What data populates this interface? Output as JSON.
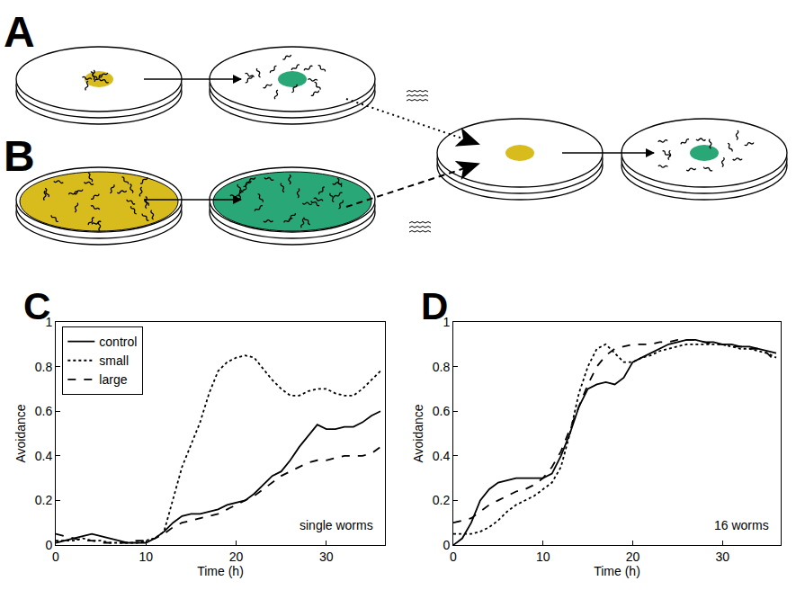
{
  "diagram": {
    "labels": [
      "A",
      "B"
    ]
  },
  "chart_data": [
    {
      "type": "line",
      "title": "C",
      "x_label": "Time (h)",
      "y_label": "Avoidance",
      "annotations": [
        "single worms"
      ],
      "x": [
        0,
        1,
        2,
        3,
        4,
        5,
        6,
        7,
        8,
        9,
        10,
        11,
        12,
        13,
        14,
        15,
        16,
        17,
        18,
        19,
        20,
        21,
        22,
        23,
        24,
        25,
        26,
        27,
        28,
        29,
        30,
        31,
        32,
        33,
        34,
        35,
        36
      ],
      "series": [
        {
          "name": "control",
          "color": "#000000",
          "line_style": "solid",
          "values": [
            0.01,
            0.02,
            0.03,
            0.04,
            0.05,
            0.04,
            0.03,
            0.02,
            0.01,
            0.01,
            0.01,
            0.03,
            0.06,
            0.1,
            0.13,
            0.14,
            0.14,
            0.15,
            0.16,
            0.18,
            0.19,
            0.2,
            0.23,
            0.27,
            0.31,
            0.33,
            0.38,
            0.44,
            0.49,
            0.54,
            0.52,
            0.52,
            0.53,
            0.53,
            0.55,
            0.58,
            0.6
          ]
        },
        {
          "name": "small",
          "color": "#000000",
          "line_style": "dot",
          "values": [
            0.02,
            0.02,
            0.02,
            0.03,
            0.02,
            0.02,
            0.01,
            0.01,
            0.01,
            0.01,
            0.02,
            0.03,
            0.06,
            0.2,
            0.35,
            0.45,
            0.55,
            0.68,
            0.78,
            0.82,
            0.84,
            0.85,
            0.84,
            0.79,
            0.74,
            0.7,
            0.67,
            0.67,
            0.69,
            0.7,
            0.7,
            0.68,
            0.67,
            0.67,
            0.7,
            0.74,
            0.78
          ]
        },
        {
          "name": "large",
          "color": "#000000",
          "line_style": "dash",
          "values": [
            0.05,
            0.04,
            0.03,
            0.02,
            0.02,
            0.01,
            0.01,
            0.01,
            0.01,
            0.02,
            0.02,
            0.03,
            0.05,
            0.08,
            0.1,
            0.11,
            0.12,
            0.13,
            0.14,
            0.16,
            0.18,
            0.2,
            0.22,
            0.25,
            0.28,
            0.31,
            0.33,
            0.35,
            0.37,
            0.38,
            0.38,
            0.39,
            0.4,
            0.4,
            0.4,
            0.41,
            0.44
          ]
        }
      ],
      "xlim": [
        0,
        36.5
      ],
      "xticks": [
        0,
        10,
        20,
        30
      ],
      "ylim": [
        0,
        1
      ],
      "yticks": [
        0,
        0.2,
        0.4,
        0.6,
        0.8,
        1
      ],
      "legend": "upper left",
      "grid": false
    },
    {
      "type": "line",
      "title": "D",
      "x_label": "Time (h)",
      "y_label": "Avoidance",
      "annotations": [
        "16 worms"
      ],
      "x": [
        0,
        1,
        2,
        3,
        4,
        5,
        6,
        7,
        8,
        9,
        10,
        11,
        12,
        13,
        14,
        15,
        16,
        17,
        18,
        19,
        20,
        21,
        22,
        23,
        24,
        25,
        26,
        27,
        28,
        29,
        30,
        31,
        32,
        33,
        34,
        35,
        36
      ],
      "series": [
        {
          "color": "#000000",
          "line_style": "solid",
          "values": [
            0.0,
            0.03,
            0.1,
            0.2,
            0.25,
            0.28,
            0.29,
            0.3,
            0.3,
            0.3,
            0.3,
            0.32,
            0.4,
            0.5,
            0.62,
            0.7,
            0.72,
            0.73,
            0.72,
            0.75,
            0.82,
            0.84,
            0.86,
            0.88,
            0.9,
            0.91,
            0.92,
            0.92,
            0.91,
            0.91,
            0.9,
            0.9,
            0.89,
            0.89,
            0.88,
            0.87,
            0.86
          ]
        },
        {
          "color": "#000000",
          "line_style": "dot",
          "values": [
            0.05,
            0.05,
            0.05,
            0.06,
            0.08,
            0.11,
            0.15,
            0.18,
            0.2,
            0.22,
            0.25,
            0.28,
            0.35,
            0.5,
            0.68,
            0.8,
            0.88,
            0.9,
            0.86,
            0.82,
            0.82,
            0.84,
            0.85,
            0.87,
            0.88,
            0.89,
            0.9,
            0.9,
            0.9,
            0.9,
            0.9,
            0.89,
            0.88,
            0.88,
            0.87,
            0.86,
            0.84
          ]
        },
        {
          "color": "#000000",
          "line_style": "dash",
          "values": [
            0.1,
            0.11,
            0.12,
            0.15,
            0.18,
            0.2,
            0.22,
            0.24,
            0.25,
            0.27,
            0.3,
            0.35,
            0.42,
            0.52,
            0.62,
            0.72,
            0.8,
            0.85,
            0.88,
            0.89,
            0.9,
            0.9,
            0.9,
            0.91,
            0.91,
            0.92,
            0.92,
            0.92,
            0.91,
            0.9,
            0.9,
            0.89,
            0.89,
            0.88,
            0.88,
            0.86,
            0.82
          ]
        }
      ],
      "xlim": [
        0,
        36.5
      ],
      "xticks": [
        0,
        10,
        20,
        30
      ],
      "ylim": [
        0,
        1
      ],
      "yticks": [
        0,
        0.2,
        0.4,
        0.6,
        0.8,
        1
      ],
      "grid": false
    }
  ]
}
